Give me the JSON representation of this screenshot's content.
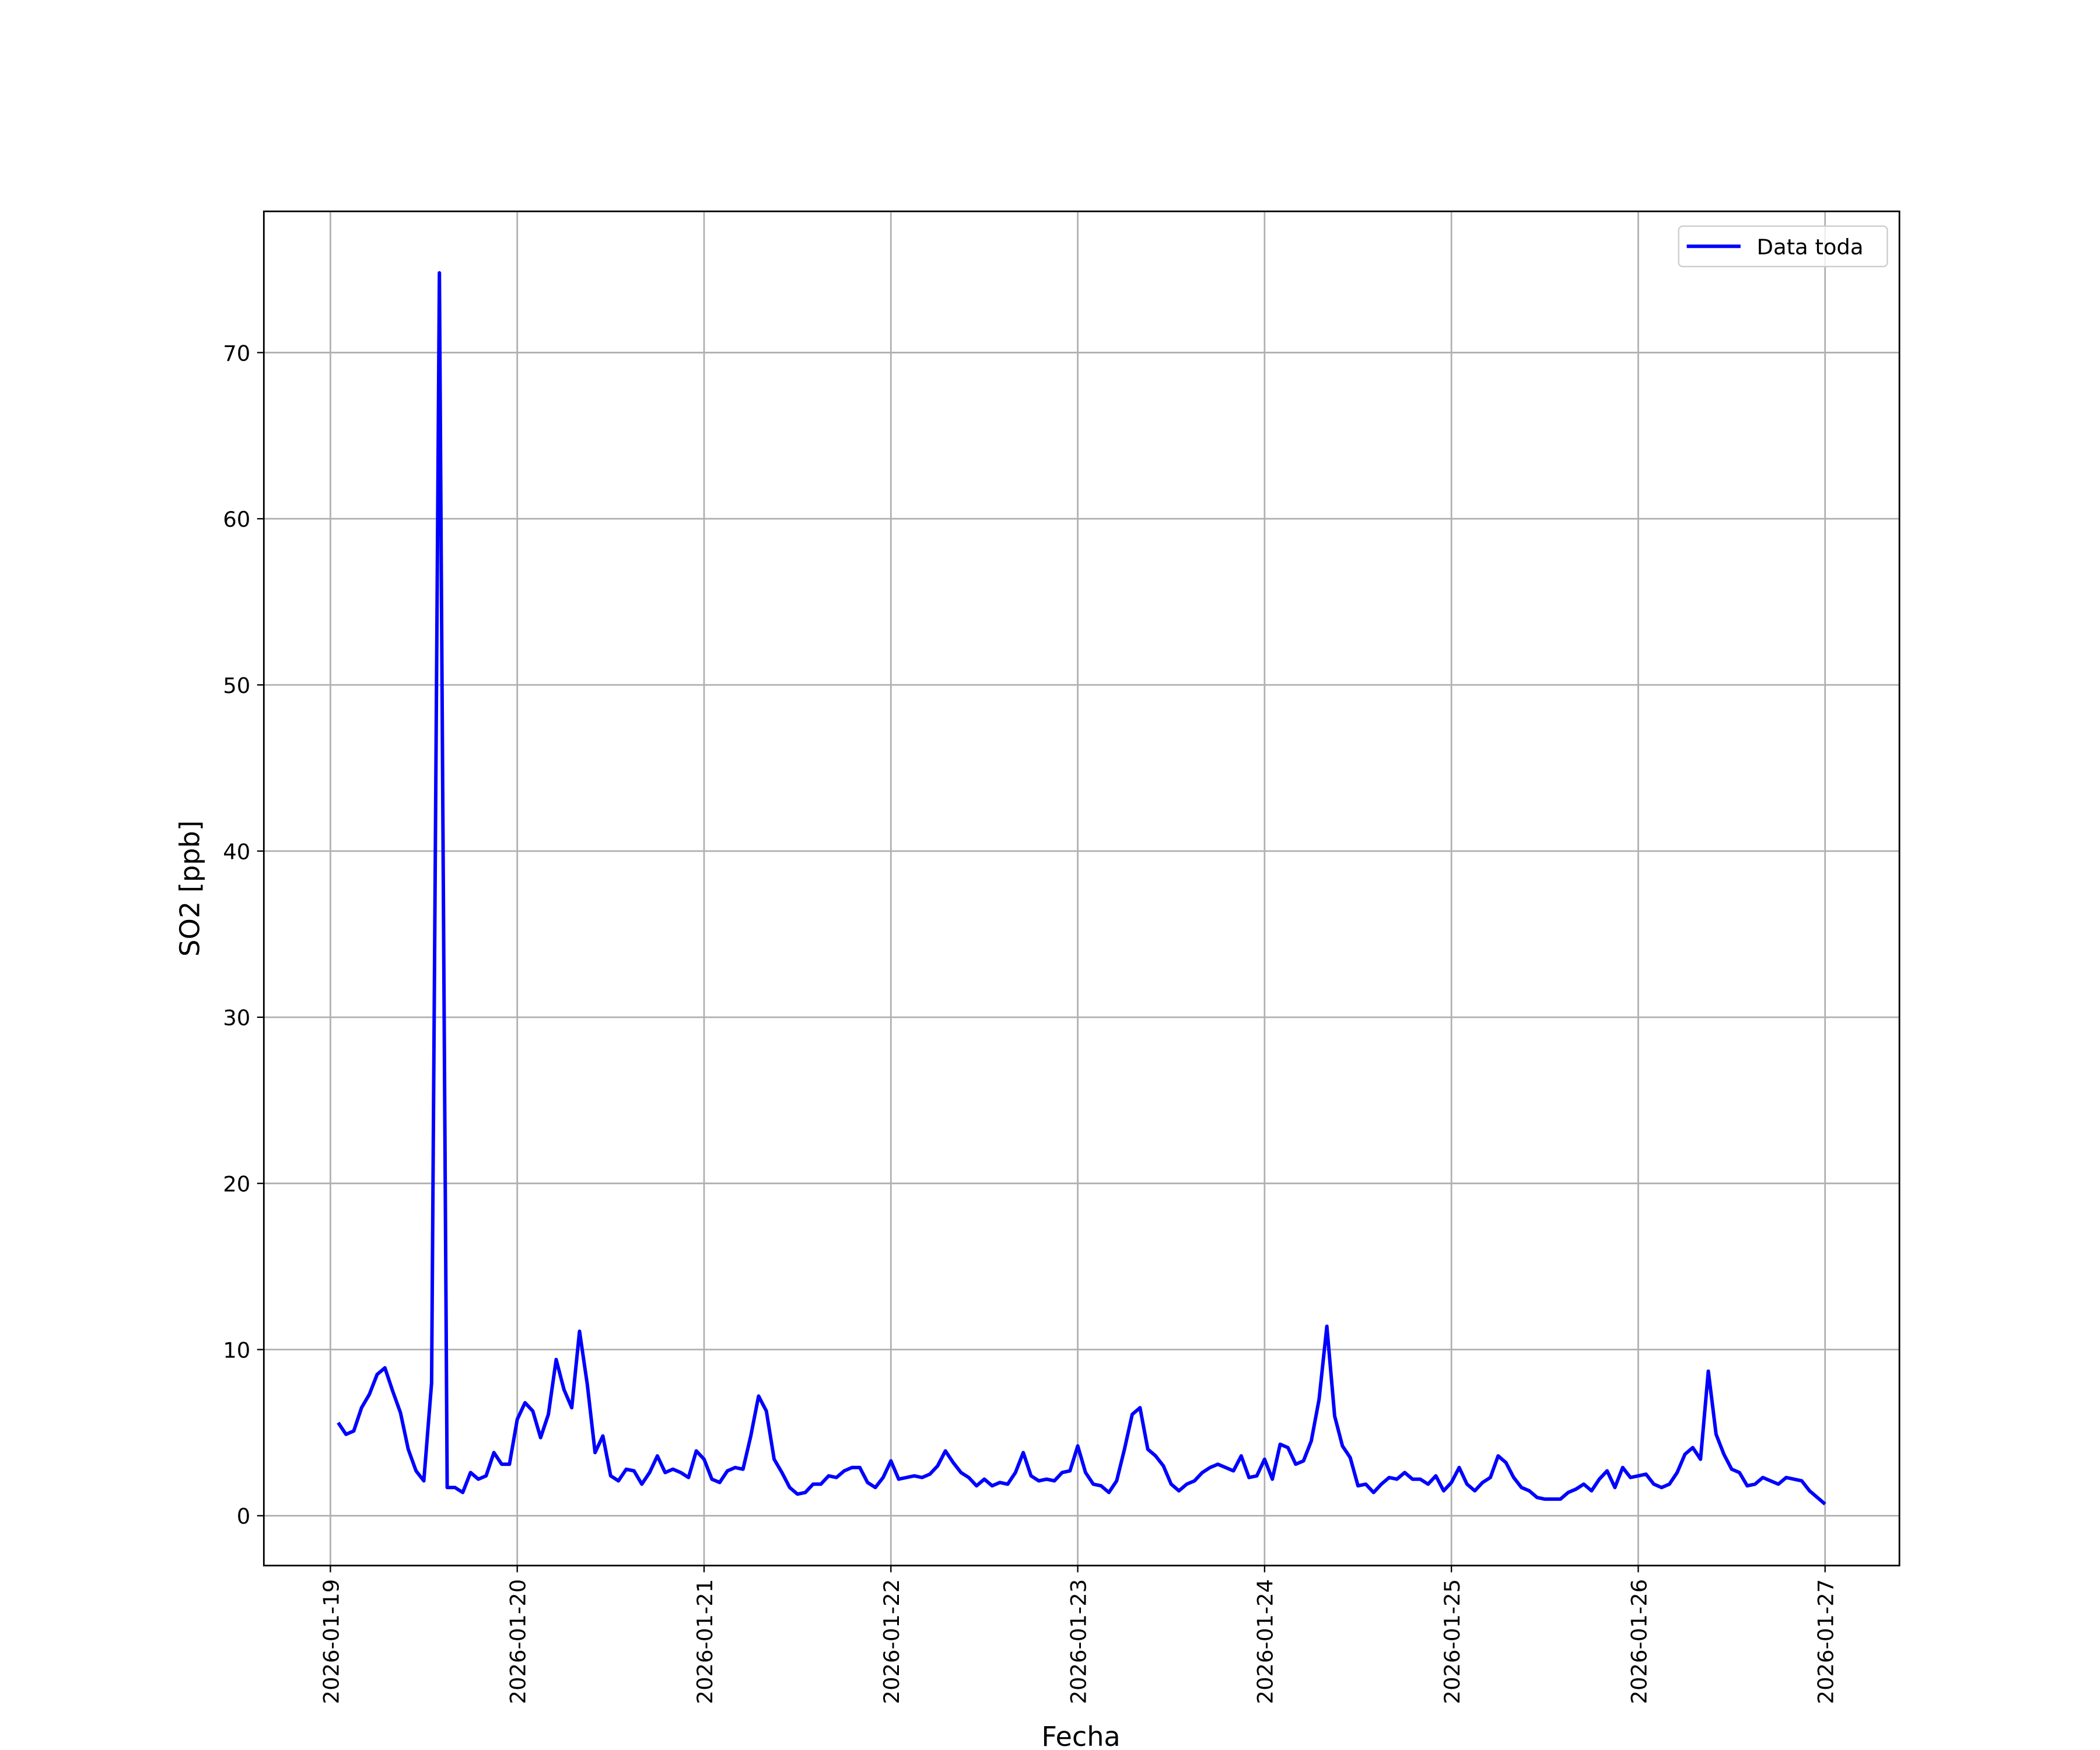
{
  "chart_data": {
    "type": "line",
    "xlabel": "Fecha",
    "ylabel": "SO2 [ppb]",
    "x": [
      "2026-01-19 01:00",
      "2026-01-19 02:00",
      "2026-01-19 03:00",
      "2026-01-19 04:00",
      "2026-01-19 05:00",
      "2026-01-19 06:00",
      "2026-01-19 07:00",
      "2026-01-19 08:00",
      "2026-01-19 09:00",
      "2026-01-19 10:00",
      "2026-01-19 11:00",
      "2026-01-19 12:00",
      "2026-01-19 13:00",
      "2026-01-19 14:00",
      "2026-01-19 15:00",
      "2026-01-19 16:00",
      "2026-01-19 17:00",
      "2026-01-19 18:00",
      "2026-01-19 19:00",
      "2026-01-19 20:00",
      "2026-01-19 21:00",
      "2026-01-19 22:00",
      "2026-01-19 23:00",
      "2026-01-20 00:00",
      "2026-01-20 01:00",
      "2026-01-20 02:00",
      "2026-01-20 03:00",
      "2026-01-20 04:00",
      "2026-01-20 05:00",
      "2026-01-20 06:00",
      "2026-01-20 07:00",
      "2026-01-20 08:00",
      "2026-01-20 09:00",
      "2026-01-20 10:00",
      "2026-01-20 11:00",
      "2026-01-20 12:00",
      "2026-01-20 13:00",
      "2026-01-20 14:00",
      "2026-01-20 15:00",
      "2026-01-20 16:00",
      "2026-01-20 17:00",
      "2026-01-20 18:00",
      "2026-01-20 19:00",
      "2026-01-20 20:00",
      "2026-01-20 21:00",
      "2026-01-20 22:00",
      "2026-01-20 23:00",
      "2026-01-21 00:00",
      "2026-01-21 01:00",
      "2026-01-21 02:00",
      "2026-01-21 03:00",
      "2026-01-21 04:00",
      "2026-01-21 05:00",
      "2026-01-21 06:00",
      "2026-01-21 07:00",
      "2026-01-21 08:00",
      "2026-01-21 09:00",
      "2026-01-21 10:00",
      "2026-01-21 11:00",
      "2026-01-21 12:00",
      "2026-01-21 13:00",
      "2026-01-21 14:00",
      "2026-01-21 15:00",
      "2026-01-21 16:00",
      "2026-01-21 17:00",
      "2026-01-21 18:00",
      "2026-01-21 19:00",
      "2026-01-21 20:00",
      "2026-01-21 21:00",
      "2026-01-21 22:00",
      "2026-01-21 23:00",
      "2026-01-22 00:00",
      "2026-01-22 01:00",
      "2026-01-22 02:00",
      "2026-01-22 03:00",
      "2026-01-22 04:00",
      "2026-01-22 05:00",
      "2026-01-22 06:00",
      "2026-01-22 07:00",
      "2026-01-22 08:00",
      "2026-01-22 09:00",
      "2026-01-22 10:00",
      "2026-01-22 11:00",
      "2026-01-22 12:00",
      "2026-01-22 13:00",
      "2026-01-22 14:00",
      "2026-01-22 15:00",
      "2026-01-22 16:00",
      "2026-01-22 17:00",
      "2026-01-22 18:00",
      "2026-01-22 19:00",
      "2026-01-22 20:00",
      "2026-01-22 21:00",
      "2026-01-22 22:00",
      "2026-01-22 23:00",
      "2026-01-23 00:00",
      "2026-01-23 01:00",
      "2026-01-23 02:00",
      "2026-01-23 03:00",
      "2026-01-23 04:00",
      "2026-01-23 05:00",
      "2026-01-23 06:00",
      "2026-01-23 07:00",
      "2026-01-23 08:00",
      "2026-01-23 09:00",
      "2026-01-23 10:00",
      "2026-01-23 11:00",
      "2026-01-23 12:00",
      "2026-01-23 13:00",
      "2026-01-23 14:00",
      "2026-01-23 15:00",
      "2026-01-23 16:00",
      "2026-01-23 17:00",
      "2026-01-23 18:00",
      "2026-01-23 19:00",
      "2026-01-23 20:00",
      "2026-01-23 21:00",
      "2026-01-23 22:00",
      "2026-01-23 23:00",
      "2026-01-24 00:00",
      "2026-01-24 01:00",
      "2026-01-24 02:00",
      "2026-01-24 03:00",
      "2026-01-24 04:00",
      "2026-01-24 05:00",
      "2026-01-24 06:00",
      "2026-01-24 07:00",
      "2026-01-24 08:00",
      "2026-01-24 09:00",
      "2026-01-24 10:00",
      "2026-01-24 11:00",
      "2026-01-24 12:00",
      "2026-01-24 13:00",
      "2026-01-24 14:00",
      "2026-01-24 15:00",
      "2026-01-24 16:00",
      "2026-01-24 17:00",
      "2026-01-24 18:00",
      "2026-01-24 19:00",
      "2026-01-24 20:00",
      "2026-01-24 21:00",
      "2026-01-24 22:00",
      "2026-01-24 23:00",
      "2026-01-25 00:00",
      "2026-01-25 01:00",
      "2026-01-25 02:00",
      "2026-01-25 03:00",
      "2026-01-25 04:00",
      "2026-01-25 05:00",
      "2026-01-25 06:00",
      "2026-01-25 07:00",
      "2026-01-25 08:00",
      "2026-01-25 09:00",
      "2026-01-25 10:00",
      "2026-01-25 11:00",
      "2026-01-25 12:00",
      "2026-01-25 13:00",
      "2026-01-25 14:00",
      "2026-01-25 15:00",
      "2026-01-25 16:00",
      "2026-01-25 17:00",
      "2026-01-25 18:00",
      "2026-01-25 19:00",
      "2026-01-25 20:00",
      "2026-01-25 21:00",
      "2026-01-25 22:00",
      "2026-01-25 23:00",
      "2026-01-26 00:00",
      "2026-01-26 01:00",
      "2026-01-26 02:00",
      "2026-01-26 03:00",
      "2026-01-26 04:00",
      "2026-01-26 05:00",
      "2026-01-26 06:00",
      "2026-01-26 07:00",
      "2026-01-26 08:00",
      "2026-01-26 09:00",
      "2026-01-26 10:00",
      "2026-01-26 11:00",
      "2026-01-26 12:00",
      "2026-01-26 13:00",
      "2026-01-26 14:00",
      "2026-01-26 15:00",
      "2026-01-26 16:00",
      "2026-01-26 17:00",
      "2026-01-26 18:00",
      "2026-01-26 19:00",
      "2026-01-26 20:00",
      "2026-01-26 21:00",
      "2026-01-26 22:00",
      "2026-01-26 23:00",
      "2026-01-27 00:00"
    ],
    "series": [
      {
        "name": "Data toda",
        "color": "#0000ff",
        "values": [
          5.6,
          4.9,
          5.1,
          6.5,
          7.3,
          8.5,
          8.9,
          7.5,
          6.2,
          4.0,
          2.7,
          2.1,
          8.0,
          74.8,
          1.7,
          1.7,
          1.4,
          2.6,
          2.2,
          2.4,
          3.8,
          3.1,
          3.1,
          5.8,
          6.8,
          6.3,
          4.7,
          6.1,
          9.4,
          7.6,
          6.5,
          11.1,
          7.9,
          3.8,
          4.8,
          2.4,
          2.1,
          2.8,
          2.7,
          1.9,
          2.6,
          3.6,
          2.6,
          2.8,
          2.6,
          2.3,
          3.9,
          3.4,
          2.2,
          2.0,
          2.7,
          2.9,
          2.8,
          4.8,
          7.2,
          6.3,
          3.4,
          2.6,
          1.7,
          1.3,
          1.4,
          1.9,
          1.9,
          2.4,
          2.3,
          2.7,
          2.9,
          2.9,
          2.0,
          1.7,
          2.3,
          3.3,
          2.2,
          2.3,
          2.4,
          2.3,
          2.5,
          3.0,
          3.9,
          3.2,
          2.6,
          2.3,
          1.8,
          2.2,
          1.8,
          2.0,
          1.9,
          2.6,
          3.8,
          2.4,
          2.1,
          2.2,
          2.1,
          2.6,
          2.7,
          4.2,
          2.6,
          1.9,
          1.8,
          1.4,
          2.1,
          4.0,
          6.1,
          6.5,
          4.0,
          3.6,
          3.0,
          1.9,
          1.5,
          1.9,
          2.1,
          2.6,
          2.9,
          3.1,
          2.9,
          2.7,
          3.6,
          2.3,
          2.4,
          3.4,
          2.2,
          4.3,
          4.1,
          3.1,
          3.3,
          4.5,
          7.0,
          11.4,
          6.0,
          4.2,
          3.5,
          1.8,
          1.9,
          1.4,
          1.9,
          2.3,
          2.2,
          2.6,
          2.2,
          2.2,
          1.9,
          2.4,
          1.5,
          2.0,
          2.9,
          1.9,
          1.5,
          2.0,
          2.3,
          3.6,
          3.2,
          2.3,
          1.7,
          1.5,
          1.1,
          1.0,
          1.0,
          1.0,
          1.4,
          1.6,
          1.9,
          1.5,
          2.2,
          2.7,
          1.7,
          2.9,
          2.3,
          2.4,
          2.5,
          1.9,
          1.7,
          1.9,
          2.6,
          3.7,
          4.1,
          3.4,
          8.7,
          4.9,
          3.7,
          2.8,
          2.6,
          1.8,
          1.9,
          2.3,
          2.1,
          1.9,
          2.3,
          2.2,
          2.1,
          1.5,
          1.1,
          0.7
        ]
      }
    ],
    "xlim": [
      "2026-01-18 15:27",
      "2026-01-27 09:33"
    ],
    "xticks": [
      "2026-01-19",
      "2026-01-20",
      "2026-01-21",
      "2026-01-22",
      "2026-01-23",
      "2026-01-24",
      "2026-01-25",
      "2026-01-26",
      "2026-01-27"
    ],
    "ylim": [
      -3.0,
      78.5
    ],
    "yticks": [
      0,
      10,
      20,
      30,
      40,
      50,
      60,
      70
    ],
    "grid": true,
    "legend": "upper right"
  }
}
